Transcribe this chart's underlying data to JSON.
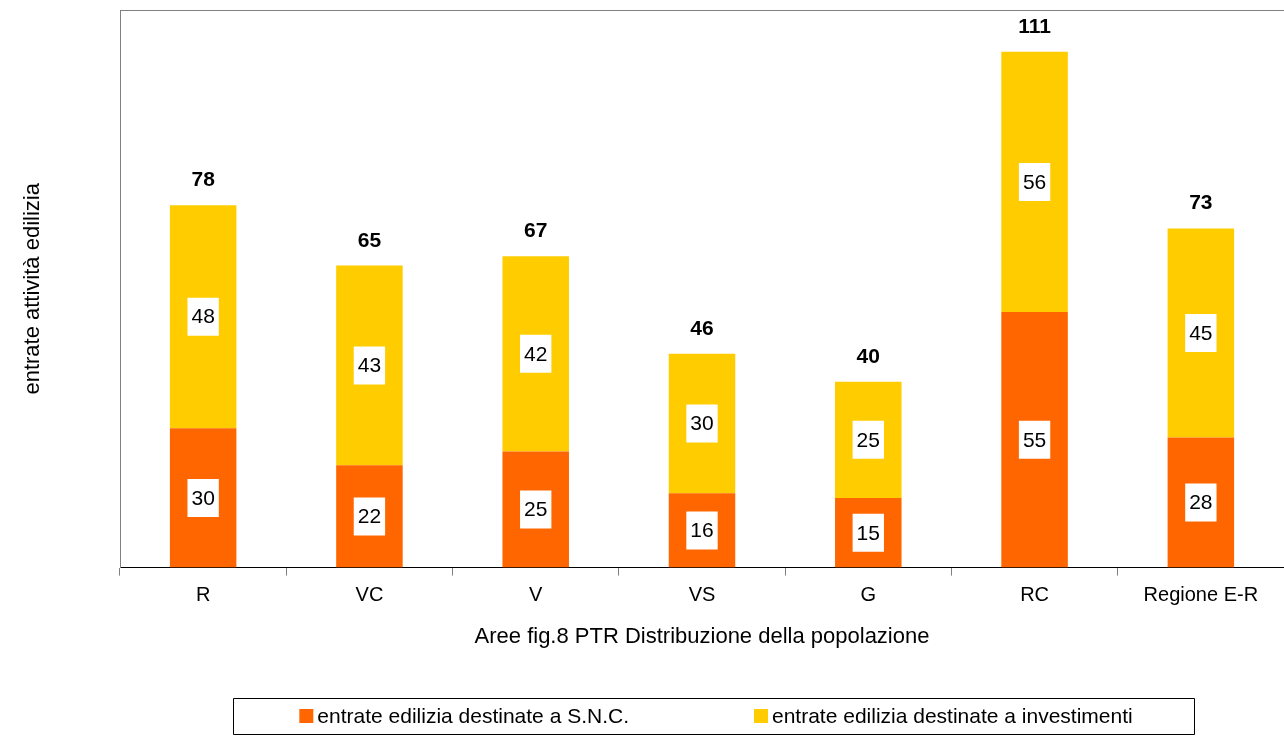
{
  "chart_data": {
    "type": "bar",
    "stacked": true,
    "xlabel": "Aree fig.8 PTR Distribuzione della popolazione",
    "ylabel": "entrate attività edilizia",
    "categories": [
      "R",
      "VC",
      "V",
      "VS",
      "G",
      "RC",
      "Regione E-R"
    ],
    "series": [
      {
        "name": "entrate edilizia destinate a S.N.C.",
        "color": "#ff6600",
        "values": [
          30,
          22,
          25,
          16,
          15,
          55,
          28
        ]
      },
      {
        "name": "entrate edilizia destinate a investimenti",
        "color": "#ffcc00",
        "values": [
          48,
          43,
          42,
          30,
          25,
          56,
          45
        ]
      }
    ],
    "data_labels": true,
    "totals": [
      "78",
      "65",
      "67",
      "46",
      "40",
      "111",
      "73"
    ],
    "legend": "bottom",
    "tick_labels": "x"
  }
}
